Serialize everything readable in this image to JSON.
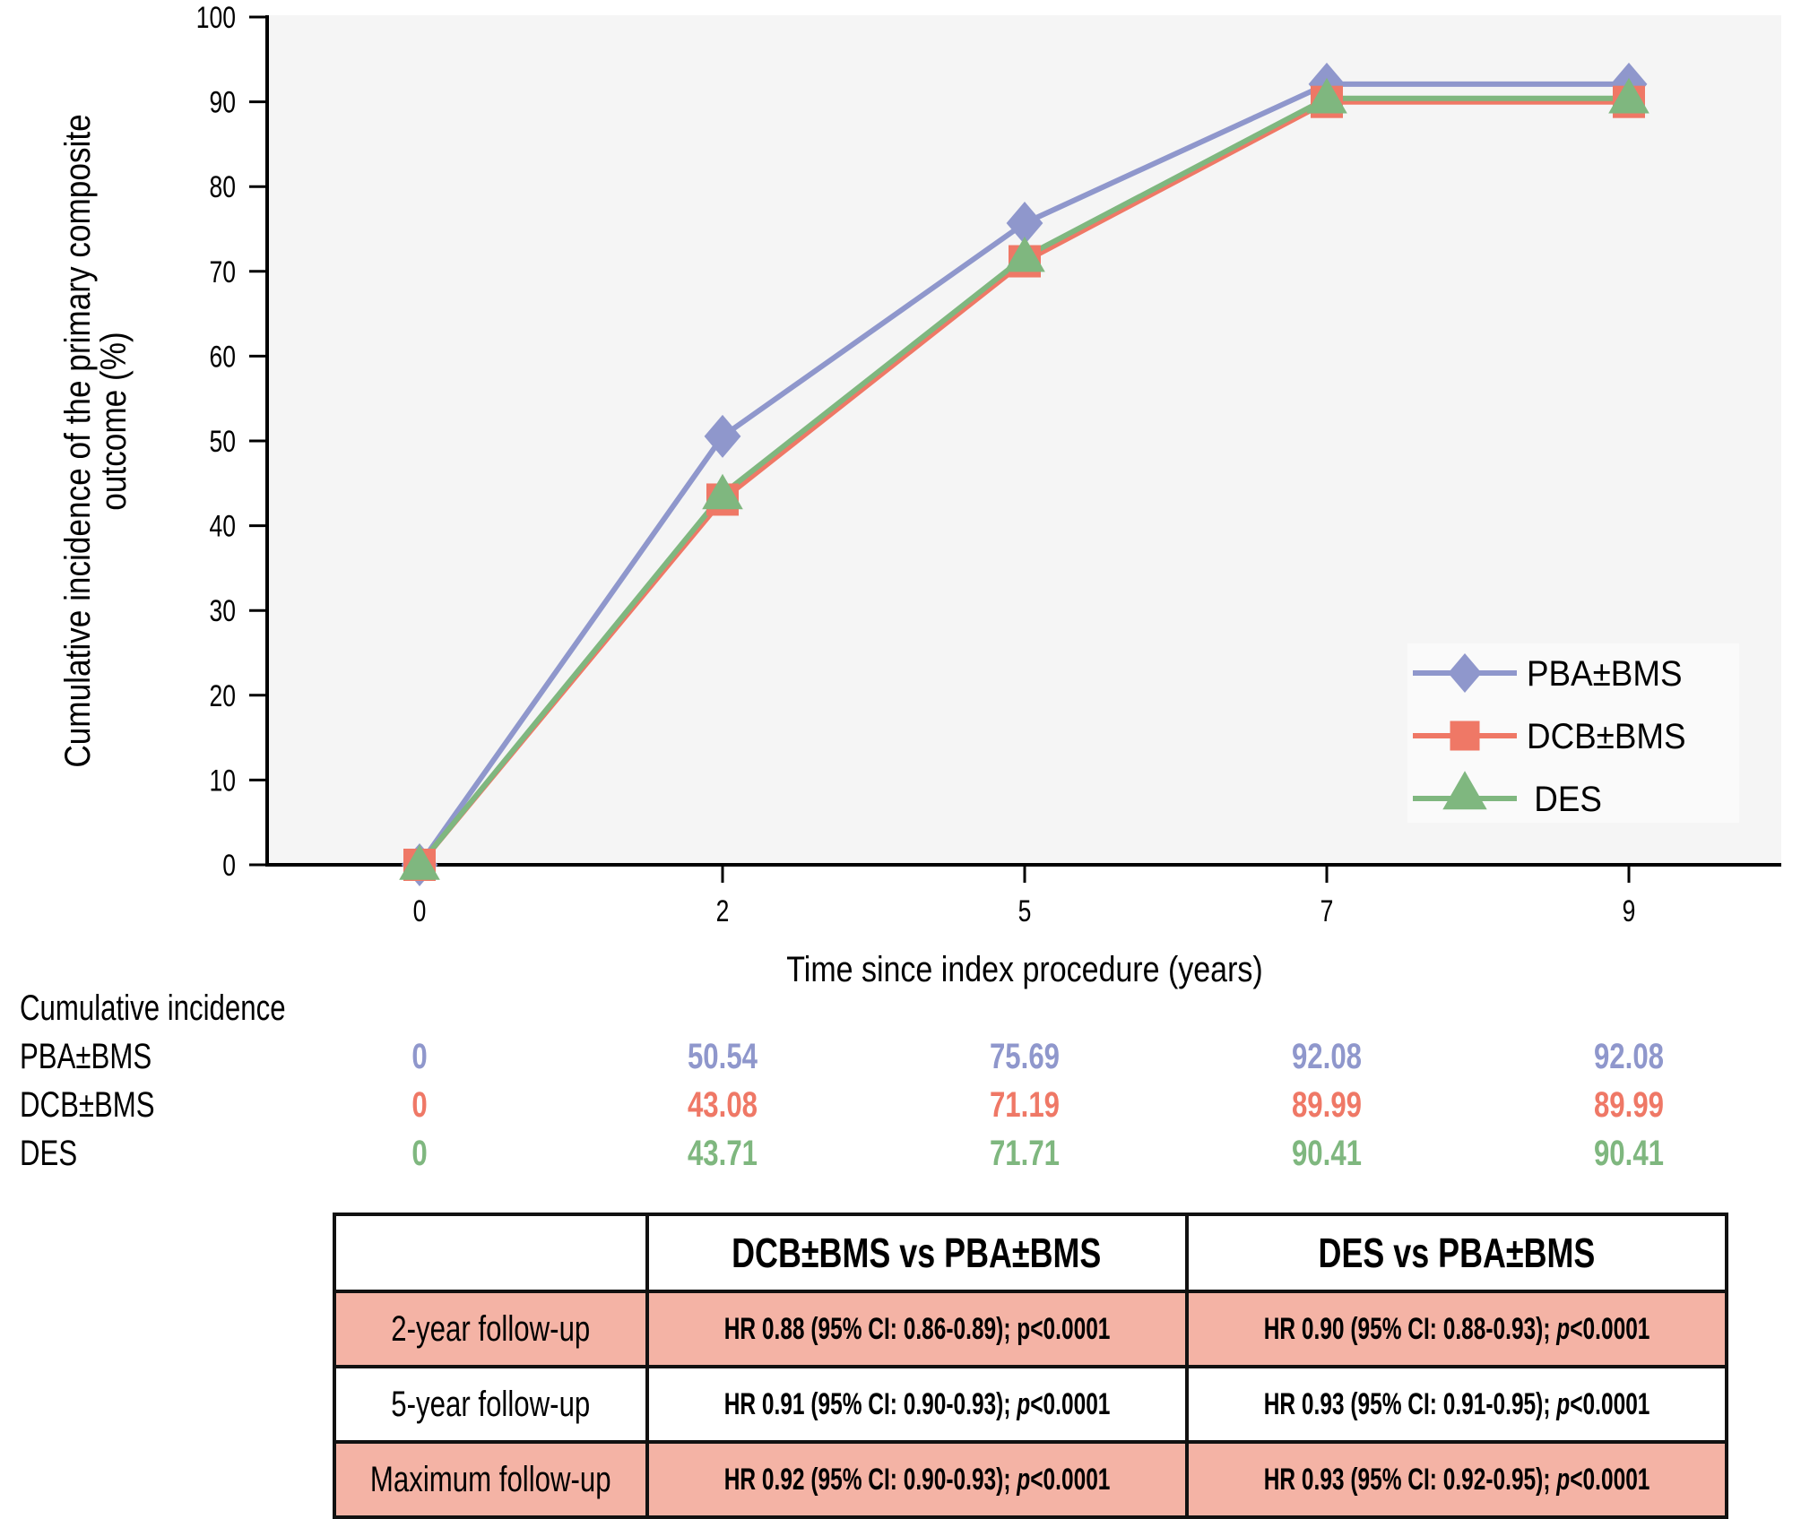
{
  "chart_data": {
    "type": "line",
    "title": "",
    "xlabel": "Time since index procedure (years)",
    "ylabel": "Cumulative incidence of the primary composite outcome (%)",
    "ylabel_lines": [
      "Cumulative incidence of the primary composite",
      "outcome (%)"
    ],
    "x": [
      "0",
      "2",
      "5",
      "7",
      "9"
    ],
    "ylim": [
      0,
      100
    ],
    "yticks": [
      0,
      10,
      20,
      30,
      40,
      50,
      60,
      70,
      80,
      90,
      100
    ],
    "grid": false,
    "legend_position": "bottom-right",
    "series": [
      {
        "name": "PBA±BMS",
        "marker": "diamond",
        "color": "#8f97cc",
        "values": [
          0,
          50.54,
          75.69,
          92.08,
          92.08
        ]
      },
      {
        "name": "DCB±BMS",
        "marker": "square",
        "color": "#ef7866",
        "values": [
          0,
          43.08,
          71.19,
          89.99,
          89.99
        ]
      },
      {
        "name": "DES",
        "marker": "triangle",
        "color": "#7fb77f",
        "values": [
          0,
          43.71,
          71.71,
          90.41,
          90.41
        ]
      }
    ]
  },
  "incidence": {
    "heading": "Cumulative incidence",
    "rows": [
      {
        "label": "PBA±BMS",
        "values": [
          "0",
          "50.54",
          "75.69",
          "92.08",
          "92.08"
        ]
      },
      {
        "label": "DCB±BMS",
        "values": [
          "0",
          "43.08",
          "71.19",
          "89.99",
          "89.99"
        ]
      },
      {
        "label": "DES",
        "values": [
          "0",
          "43.71",
          "71.71",
          "90.41",
          "90.41"
        ]
      }
    ]
  },
  "hr_table": {
    "headers": [
      "",
      "DCB±BMS vs PBA±BMS",
      "DES vs PBA±BMS"
    ],
    "rows": [
      {
        "label": "2-year follow-up",
        "c1": {
          "pre": "HR 0.88 (95% CI: 0.86-0.89); ",
          "p": "p",
          "post": "<0.0001",
          "p_italic": false
        },
        "c2": {
          "pre": "HR 0.90 (95% CI: 0.88-0.93); ",
          "p": "p",
          "post": "<0.0001",
          "p_italic": true
        }
      },
      {
        "label": "5-year follow-up",
        "c1": {
          "pre": "HR 0.91 (95% CI: 0.90-0.93); ",
          "p": "p",
          "post": "<0.0001",
          "p_italic": true
        },
        "c2": {
          "pre": "HR 0.93 (95% CI: 0.91-0.95); ",
          "p": "p",
          "post": "<0.0001",
          "p_italic": true
        }
      },
      {
        "label": "Maximum follow-up",
        "c1": {
          "pre": "HR 0.92 (95% CI: 0.90-0.93); ",
          "p": "p",
          "post": "<0.0001",
          "p_italic": true
        },
        "c2": {
          "pre": "HR 0.93 (95% CI: 0.92-0.95); ",
          "p": "p",
          "post": "<0.0001",
          "p_italic": true
        }
      }
    ]
  }
}
